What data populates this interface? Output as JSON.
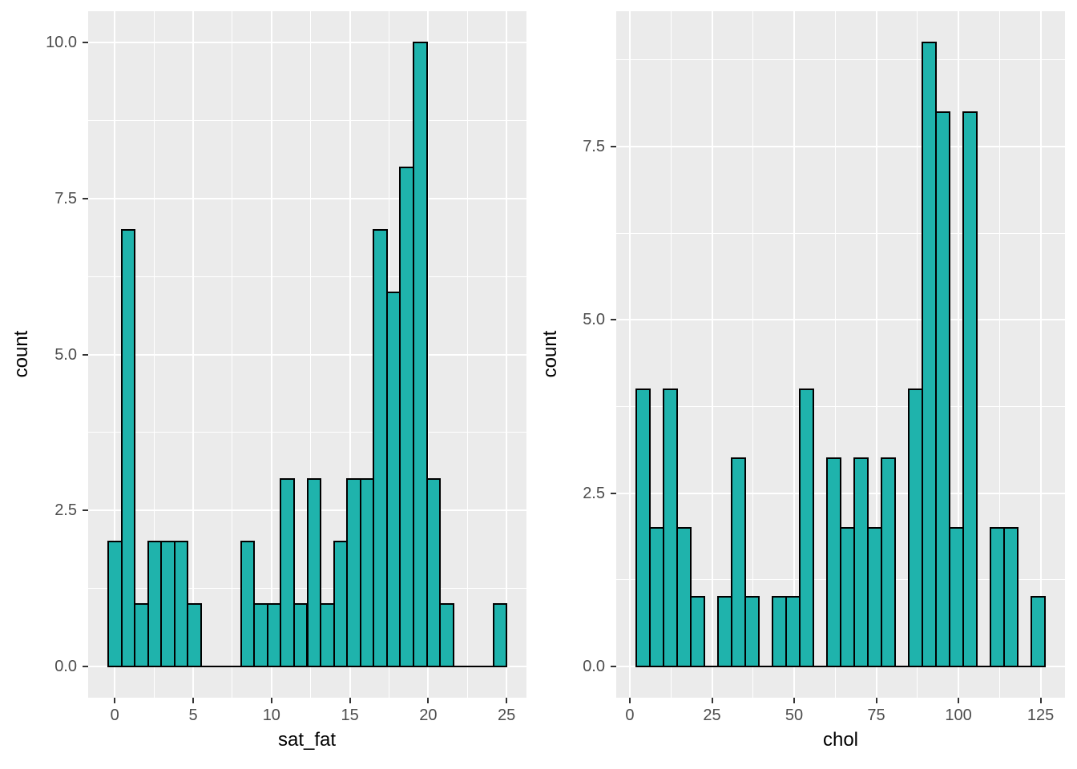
{
  "chart_data": [
    {
      "type": "bar",
      "subtype": "histogram",
      "title": "",
      "xlabel": "sat_fat",
      "ylabel": "count",
      "bin_width": 0.85,
      "bin_centers": [
        0,
        0.85,
        1.69,
        2.54,
        3.39,
        4.24,
        5.08,
        5.93,
        6.78,
        7.63,
        8.47,
        9.32,
        10.17,
        11.02,
        11.86,
        12.71,
        13.56,
        14.41,
        15.25,
        16.1,
        16.95,
        17.8,
        18.64,
        19.49,
        20.34,
        21.19,
        22.03,
        22.88,
        23.73,
        24.58
      ],
      "counts": [
        2,
        7,
        1,
        2,
        2,
        2,
        1,
        0,
        0,
        0,
        2,
        1,
        1,
        3,
        1,
        3,
        1,
        2,
        3,
        3,
        7,
        6,
        8,
        10,
        3,
        1,
        0,
        0,
        0,
        1
      ],
      "x_ticks": {
        "values": [
          0,
          5,
          10,
          15,
          20,
          25
        ],
        "labels": [
          "0",
          "5",
          "10",
          "15",
          "20",
          "25"
        ]
      },
      "y_ticks": {
        "values": [
          0,
          2.5,
          5,
          7.5,
          10
        ],
        "labels": [
          "0.0",
          "2.5",
          "5.0",
          "7.5",
          "10.0"
        ]
      },
      "x_minor": [
        2.5,
        7.5,
        12.5,
        17.5,
        22.5
      ],
      "y_minor": [
        1.25,
        3.75,
        6.25,
        8.75
      ],
      "xlim": [
        -1.7,
        26.27
      ],
      "ylim": [
        -0.5,
        10.5
      ],
      "grid": "on",
      "legend": "none"
    },
    {
      "type": "bar",
      "subtype": "histogram",
      "title": "",
      "xlabel": "chol",
      "ylabel": "count",
      "bin_width": 4.14,
      "bin_centers": [
        0,
        4.14,
        8.28,
        12.41,
        16.55,
        20.69,
        24.83,
        28.97,
        33.1,
        37.24,
        41.38,
        45.52,
        49.66,
        53.79,
        57.93,
        62.07,
        66.21,
        70.34,
        74.48,
        78.62,
        82.76,
        86.9,
        91.03,
        95.17,
        99.31,
        103.45,
        107.59,
        111.72,
        115.86,
        120,
        124.14
      ],
      "counts": [
        0,
        4,
        2,
        4,
        2,
        1,
        0,
        1,
        3,
        1,
        0,
        1,
        1,
        4,
        0,
        3,
        2,
        3,
        2,
        3,
        0,
        4,
        9,
        8,
        2,
        8,
        0,
        2,
        2,
        0,
        1
      ],
      "x_ticks": {
        "values": [
          0,
          25,
          50,
          75,
          100,
          125
        ],
        "labels": [
          "0",
          "25",
          "50",
          "75",
          "100",
          "125"
        ]
      },
      "y_ticks": {
        "values": [
          0,
          2.5,
          5,
          7.5
        ],
        "labels": [
          "0.0",
          "2.5",
          "5.0",
          "7.5"
        ]
      },
      "x_minor": [
        12.5,
        37.5,
        62.5,
        87.5,
        112.5
      ],
      "y_minor": [
        1.25,
        3.75,
        6.25,
        8.75
      ],
      "xlim": [
        -4.14,
        132.41
      ],
      "ylim": [
        -0.45,
        9.45
      ],
      "grid": "on",
      "legend": "none"
    }
  ],
  "style": {
    "bar_fill": "#1FB3AC",
    "bar_stroke": "#000000",
    "panel_bg": "#EBEBEB",
    "grid_color": "#FFFFFF",
    "tick_label_color": "#4D4D4D",
    "axis_title_color": "#000000",
    "tick_mark_color": "#333333",
    "background": "#FFFFFF"
  }
}
